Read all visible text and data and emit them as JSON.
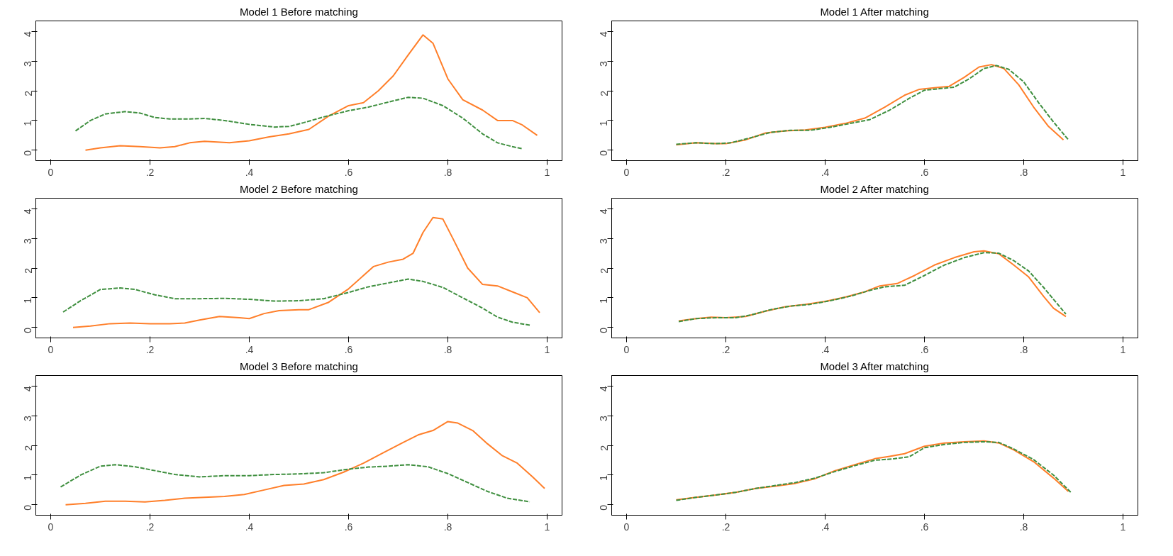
{
  "chart_data": [
    {
      "type": "line",
      "title": "Model 1 Before matching",
      "xlim": [
        -0.03,
        1.03
      ],
      "ylim": [
        -0.35,
        4.35
      ],
      "xticks": [
        0,
        {
          "value": 0.2,
          "label": ".2"
        },
        {
          "value": 0.4,
          "label": ".4"
        },
        {
          "value": 0.6,
          "label": ".6"
        },
        {
          "value": 0.8,
          "label": ".8"
        },
        1
      ],
      "yticks": [
        0,
        1,
        2,
        3,
        4
      ],
      "series": [
        {
          "color": "#ff7f2a",
          "line_style": "solid",
          "x": [
            0.07,
            0.1,
            0.14,
            0.18,
            0.22,
            0.25,
            0.28,
            0.31,
            0.36,
            0.4,
            0.44,
            0.48,
            0.52,
            0.56,
            0.6,
            0.63,
            0.66,
            0.69,
            0.72,
            0.75,
            0.77,
            0.8,
            0.83,
            0.87,
            0.9,
            0.93,
            0.95,
            0.98
          ],
          "values": [
            0.0,
            0.08,
            0.15,
            0.12,
            0.08,
            0.12,
            0.25,
            0.3,
            0.25,
            0.32,
            0.45,
            0.55,
            0.7,
            1.15,
            1.5,
            1.6,
            2.0,
            2.5,
            3.2,
            3.88,
            3.6,
            2.4,
            1.7,
            1.35,
            1.0,
            1.0,
            0.85,
            0.5
          ]
        },
        {
          "color": "#3f8f3f",
          "line_style": "dashed",
          "x": [
            0.05,
            0.08,
            0.11,
            0.15,
            0.18,
            0.21,
            0.24,
            0.28,
            0.31,
            0.35,
            0.4,
            0.45,
            0.48,
            0.51,
            0.55,
            0.6,
            0.64,
            0.68,
            0.72,
            0.75,
            0.79,
            0.83,
            0.87,
            0.9,
            0.93,
            0.95
          ],
          "values": [
            0.65,
            1.0,
            1.22,
            1.3,
            1.25,
            1.1,
            1.05,
            1.05,
            1.07,
            1.0,
            0.87,
            0.78,
            0.8,
            0.93,
            1.12,
            1.33,
            1.45,
            1.62,
            1.78,
            1.75,
            1.5,
            1.08,
            0.55,
            0.25,
            0.12,
            0.05
          ]
        }
      ]
    },
    {
      "type": "line",
      "title": "Model 1 After matching",
      "xlim": [
        -0.03,
        1.03
      ],
      "ylim": [
        -0.35,
        4.35
      ],
      "xticks": [
        0,
        {
          "value": 0.2,
          "label": ".2"
        },
        {
          "value": 0.4,
          "label": ".4"
        },
        {
          "value": 0.6,
          "label": ".6"
        },
        {
          "value": 0.8,
          "label": ".8"
        },
        1
      ],
      "yticks": [
        0,
        1,
        2,
        3,
        4
      ],
      "series": [
        {
          "color": "#ff7f2a",
          "line_style": "solid",
          "x": [
            0.1,
            0.14,
            0.18,
            0.2,
            0.24,
            0.28,
            0.32,
            0.36,
            0.4,
            0.44,
            0.48,
            0.52,
            0.56,
            0.59,
            0.62,
            0.65,
            0.68,
            0.71,
            0.735,
            0.76,
            0.79,
            0.82,
            0.85,
            0.88
          ],
          "values": [
            0.18,
            0.25,
            0.22,
            0.22,
            0.35,
            0.58,
            0.65,
            0.68,
            0.77,
            0.9,
            1.08,
            1.45,
            1.85,
            2.05,
            2.1,
            2.15,
            2.45,
            2.8,
            2.88,
            2.75,
            2.2,
            1.45,
            0.8,
            0.35
          ]
        },
        {
          "color": "#3f8f3f",
          "line_style": "dashed",
          "x": [
            0.1,
            0.14,
            0.18,
            0.21,
            0.25,
            0.29,
            0.33,
            0.37,
            0.41,
            0.45,
            0.49,
            0.53,
            0.57,
            0.6,
            0.63,
            0.66,
            0.69,
            0.72,
            0.745,
            0.77,
            0.8,
            0.83,
            0.86,
            0.89
          ],
          "values": [
            0.2,
            0.25,
            0.22,
            0.25,
            0.42,
            0.6,
            0.67,
            0.67,
            0.77,
            0.9,
            1.03,
            1.35,
            1.75,
            2.02,
            2.07,
            2.12,
            2.4,
            2.75,
            2.85,
            2.72,
            2.3,
            1.6,
            0.95,
            0.35
          ]
        }
      ]
    },
    {
      "type": "line",
      "title": "Model 2 Before matching",
      "xlim": [
        -0.03,
        1.03
      ],
      "ylim": [
        -0.35,
        4.35
      ],
      "xticks": [
        0,
        {
          "value": 0.2,
          "label": ".2"
        },
        {
          "value": 0.4,
          "label": ".4"
        },
        {
          "value": 0.6,
          "label": ".6"
        },
        {
          "value": 0.8,
          "label": ".8"
        },
        1
      ],
      "yticks": [
        0,
        1,
        2,
        3,
        4
      ],
      "series": [
        {
          "color": "#ff7f2a",
          "line_style": "solid",
          "x": [
            0.045,
            0.08,
            0.12,
            0.16,
            0.2,
            0.24,
            0.27,
            0.3,
            0.34,
            0.38,
            0.4,
            0.43,
            0.46,
            0.5,
            0.52,
            0.56,
            0.6,
            0.63,
            0.65,
            0.68,
            0.71,
            0.73,
            0.75,
            0.77,
            0.79,
            0.81,
            0.84,
            0.87,
            0.9,
            0.93,
            0.96,
            0.985
          ],
          "values": [
            0.0,
            0.05,
            0.13,
            0.15,
            0.13,
            0.13,
            0.15,
            0.25,
            0.37,
            0.33,
            0.3,
            0.47,
            0.57,
            0.6,
            0.6,
            0.85,
            1.3,
            1.75,
            2.05,
            2.2,
            2.3,
            2.5,
            3.2,
            3.7,
            3.65,
            3.0,
            2.0,
            1.45,
            1.4,
            1.2,
            1.0,
            0.5
          ]
        },
        {
          "color": "#3f8f3f",
          "line_style": "dashed",
          "x": [
            0.025,
            0.06,
            0.1,
            0.14,
            0.17,
            0.21,
            0.25,
            0.3,
            0.35,
            0.4,
            0.45,
            0.5,
            0.55,
            0.6,
            0.64,
            0.68,
            0.72,
            0.75,
            0.79,
            0.83,
            0.87,
            0.9,
            0.93,
            0.965
          ],
          "values": [
            0.52,
            0.9,
            1.28,
            1.33,
            1.28,
            1.1,
            0.97,
            0.97,
            0.98,
            0.95,
            0.89,
            0.9,
            0.97,
            1.18,
            1.37,
            1.5,
            1.63,
            1.55,
            1.35,
            1.0,
            0.65,
            0.35,
            0.18,
            0.08
          ]
        }
      ]
    },
    {
      "type": "line",
      "title": "Model 2 After matching",
      "xlim": [
        -0.03,
        1.03
      ],
      "ylim": [
        -0.35,
        4.35
      ],
      "xticks": [
        0,
        {
          "value": 0.2,
          "label": ".2"
        },
        {
          "value": 0.4,
          "label": ".4"
        },
        {
          "value": 0.6,
          "label": ".6"
        },
        {
          "value": 0.8,
          "label": ".8"
        },
        1
      ],
      "yticks": [
        0,
        1,
        2,
        3,
        4
      ],
      "series": [
        {
          "color": "#ff7f2a",
          "line_style": "solid",
          "x": [
            0.105,
            0.14,
            0.17,
            0.2,
            0.24,
            0.28,
            0.32,
            0.36,
            0.4,
            0.44,
            0.48,
            0.51,
            0.545,
            0.58,
            0.62,
            0.66,
            0.7,
            0.72,
            0.75,
            0.78,
            0.81,
            0.84,
            0.86,
            0.885
          ],
          "values": [
            0.22,
            0.3,
            0.35,
            0.33,
            0.37,
            0.55,
            0.7,
            0.78,
            0.88,
            1.02,
            1.2,
            1.4,
            1.48,
            1.75,
            2.1,
            2.35,
            2.55,
            2.58,
            2.48,
            2.1,
            1.7,
            1.05,
            0.65,
            0.37
          ]
        },
        {
          "color": "#3f8f3f",
          "line_style": "dashed",
          "x": [
            0.105,
            0.14,
            0.18,
            0.22,
            0.25,
            0.29,
            0.33,
            0.37,
            0.41,
            0.45,
            0.49,
            0.52,
            0.56,
            0.6,
            0.64,
            0.68,
            0.72,
            0.75,
            0.78,
            0.81,
            0.84,
            0.865,
            0.885
          ],
          "values": [
            0.2,
            0.3,
            0.33,
            0.33,
            0.42,
            0.6,
            0.72,
            0.78,
            0.9,
            1.05,
            1.25,
            1.37,
            1.42,
            1.75,
            2.1,
            2.35,
            2.52,
            2.5,
            2.25,
            1.9,
            1.35,
            0.85,
            0.45
          ]
        }
      ]
    },
    {
      "type": "line",
      "title": "Model 3 Before matching",
      "xlim": [
        -0.03,
        1.03
      ],
      "ylim": [
        -0.35,
        4.35
      ],
      "xticks": [
        0,
        {
          "value": 0.2,
          "label": ".2"
        },
        {
          "value": 0.4,
          "label": ".4"
        },
        {
          "value": 0.6,
          "label": ".6"
        },
        {
          "value": 0.8,
          "label": ".8"
        },
        1
      ],
      "yticks": [
        0,
        1,
        2,
        3,
        4
      ],
      "series": [
        {
          "color": "#ff7f2a",
          "line_style": "solid",
          "x": [
            0.03,
            0.07,
            0.11,
            0.15,
            0.19,
            0.23,
            0.27,
            0.31,
            0.35,
            0.39,
            0.43,
            0.47,
            0.51,
            0.55,
            0.59,
            0.63,
            0.67,
            0.71,
            0.74,
            0.77,
            0.8,
            0.82,
            0.85,
            0.88,
            0.91,
            0.94,
            0.97,
            0.995
          ],
          "values": [
            0.0,
            0.05,
            0.12,
            0.12,
            0.1,
            0.15,
            0.22,
            0.25,
            0.28,
            0.35,
            0.5,
            0.65,
            0.7,
            0.85,
            1.1,
            1.4,
            1.75,
            2.1,
            2.35,
            2.5,
            2.8,
            2.75,
            2.5,
            2.05,
            1.65,
            1.4,
            0.95,
            0.55
          ]
        },
        {
          "color": "#3f8f3f",
          "line_style": "dashed",
          "x": [
            0.02,
            0.06,
            0.1,
            0.13,
            0.17,
            0.21,
            0.25,
            0.3,
            0.35,
            0.4,
            0.45,
            0.5,
            0.55,
            0.6,
            0.64,
            0.68,
            0.72,
            0.76,
            0.8,
            0.84,
            0.88,
            0.92,
            0.965
          ],
          "values": [
            0.6,
            1.0,
            1.3,
            1.35,
            1.28,
            1.15,
            1.02,
            0.94,
            0.98,
            0.98,
            1.02,
            1.04,
            1.08,
            1.2,
            1.27,
            1.3,
            1.35,
            1.28,
            1.05,
            0.75,
            0.45,
            0.22,
            0.1
          ]
        }
      ]
    },
    {
      "type": "line",
      "title": "Model 3 After matching",
      "xlim": [
        -0.03,
        1.03
      ],
      "ylim": [
        -0.35,
        4.35
      ],
      "xticks": [
        0,
        {
          "value": 0.2,
          "label": ".2"
        },
        {
          "value": 0.4,
          "label": ".4"
        },
        {
          "value": 0.6,
          "label": ".6"
        },
        {
          "value": 0.8,
          "label": ".8"
        },
        1
      ],
      "yticks": [
        0,
        1,
        2,
        3,
        4
      ],
      "series": [
        {
          "color": "#ff7f2a",
          "line_style": "solid",
          "x": [
            0.1,
            0.14,
            0.18,
            0.22,
            0.26,
            0.3,
            0.34,
            0.38,
            0.42,
            0.46,
            0.5,
            0.53,
            0.56,
            0.6,
            0.64,
            0.68,
            0.72,
            0.75,
            0.78,
            0.82,
            0.86,
            0.89
          ],
          "values": [
            0.17,
            0.25,
            0.33,
            0.42,
            0.55,
            0.63,
            0.72,
            0.88,
            1.15,
            1.35,
            1.55,
            1.63,
            1.72,
            1.97,
            2.08,
            2.12,
            2.15,
            2.08,
            1.85,
            1.45,
            0.9,
            0.45
          ]
        },
        {
          "color": "#3f8f3f",
          "line_style": "dashed",
          "x": [
            0.1,
            0.14,
            0.18,
            0.22,
            0.26,
            0.3,
            0.34,
            0.38,
            0.42,
            0.46,
            0.5,
            0.54,
            0.57,
            0.6,
            0.64,
            0.68,
            0.72,
            0.75,
            0.78,
            0.82,
            0.86,
            0.895
          ],
          "values": [
            0.15,
            0.25,
            0.33,
            0.42,
            0.55,
            0.65,
            0.75,
            0.9,
            1.12,
            1.32,
            1.5,
            1.55,
            1.62,
            1.92,
            2.03,
            2.1,
            2.12,
            2.1,
            1.88,
            1.52,
            1.0,
            0.42
          ]
        }
      ]
    }
  ]
}
